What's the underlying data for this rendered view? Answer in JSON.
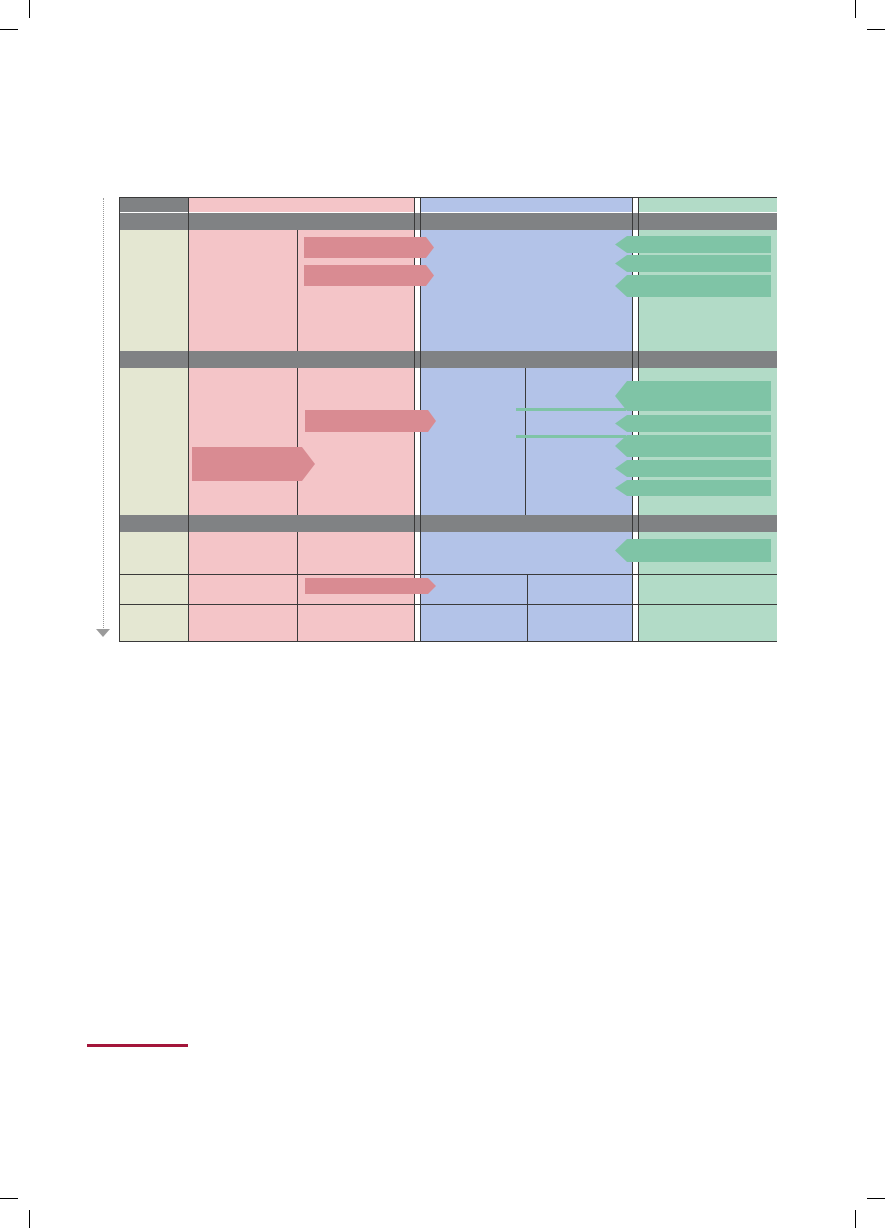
{
  "colors": {
    "pink": "#f4c5c8",
    "blue": "#b3c3e8",
    "green": "#b2dbc7",
    "beige": "#e4e7d2",
    "gray": "#808284",
    "pink_arrow": "#d98b92",
    "green_arrow": "#7fc4a6",
    "accent_rule": "#a3153a"
  },
  "icons": {
    "timeline": "down-triangle-icon"
  }
}
